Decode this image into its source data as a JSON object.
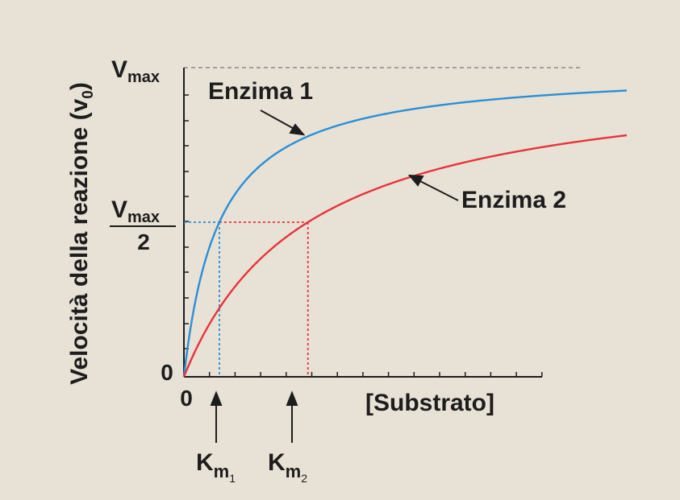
{
  "chart_data": {
    "type": "line",
    "ylabel": "Velocità della reazione (v",
    "ylabel_sub": "0",
    "ylabel_close": ")",
    "xlabel": "[Substrato]",
    "x_origin_label": "0",
    "y_origin_label": "0",
    "vmax": {
      "main": "V",
      "sub": "max"
    },
    "vhalf": {
      "main": "V",
      "sub": "max",
      "denominator": "2"
    },
    "km1": {
      "main": "K",
      "sub": "m",
      "subsub": "1"
    },
    "km2": {
      "main": "K",
      "sub": "m",
      "subsub": "2"
    },
    "xlim": [
      0,
      12.5
    ],
    "ylim": [
      0,
      1
    ],
    "series": [
      {
        "name": "Enzima 1",
        "color": "#2a8fd6",
        "vmax": 1,
        "km": 1
      },
      {
        "name": "Enzima 2",
        "color": "#e8333b",
        "vmax": 1,
        "km": 3.5
      }
    ],
    "km_values": [
      1,
      3.5
    ],
    "vmax_value": 1,
    "vhalf_value": 0.5
  }
}
